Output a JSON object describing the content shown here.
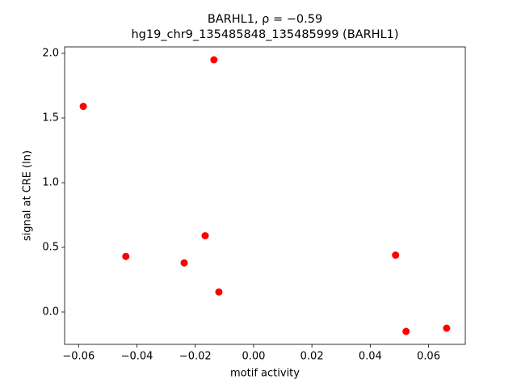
{
  "chart_data": {
    "type": "scatter",
    "title": [
      "BARHL1, ρ = −0.59",
      "hg19_chr9_135485848_135485999 (BARHL1)"
    ],
    "x_label": "motif activity",
    "y_label": "signal at CRE (ln)",
    "color": "#ff0000",
    "x": [
      -0.0584,
      -0.0136,
      -0.0438,
      -0.0238,
      -0.0166,
      -0.0119,
      0.0487,
      0.0523,
      0.0662
    ],
    "values": [
      1.59,
      1.95,
      0.43,
      0.38,
      0.59,
      0.155,
      0.44,
      -0.15,
      -0.125
    ],
    "xlim": [
      -0.0648,
      0.0726
    ],
    "ylim": [
      -0.25,
      2.05
    ],
    "xticks": [
      {
        "value": -0.06,
        "label": "−0.06"
      },
      {
        "value": -0.04,
        "label": "−0.04"
      },
      {
        "value": -0.02,
        "label": "−0.02"
      },
      {
        "value": 0,
        "label": "0.00"
      },
      0.02,
      0.04,
      0.06
    ],
    "yticks": [
      {
        "value": 0,
        "label": "0.0"
      },
      0.5,
      {
        "value": 1,
        "label": "1.0"
      },
      1.5,
      {
        "value": 2,
        "label": "2.0"
      }
    ]
  }
}
